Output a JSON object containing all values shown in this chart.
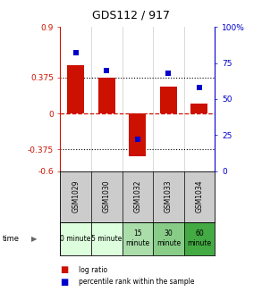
{
  "title": "GDS112 / 917",
  "samples": [
    "GSM1029",
    "GSM1030",
    "GSM1032",
    "GSM1033",
    "GSM1034"
  ],
  "log_ratio": [
    0.5,
    0.375,
    -0.45,
    0.28,
    0.1
  ],
  "percentile_rank": [
    82,
    70,
    22,
    68,
    58
  ],
  "time_labels": [
    "0 minute",
    "5 minute",
    "15\nminute",
    "30\nminute",
    "60\nminute"
  ],
  "time_colors": [
    "#ddffdd",
    "#ddffdd",
    "#aaddaa",
    "#88cc88",
    "#44aa44"
  ],
  "ylim_left": [
    -0.6,
    0.9
  ],
  "ylim_right": [
    0,
    100
  ],
  "yticks_left": [
    -0.6,
    -0.375,
    0,
    0.375,
    0.9
  ],
  "yticks_right": [
    0,
    25,
    50,
    75,
    100
  ],
  "hlines": [
    0.375,
    -0.375
  ],
  "bar_color": "#cc1100",
  "marker_color": "#0000cc",
  "sample_bg": "#cccccc",
  "legend_bar_label": "log ratio",
  "legend_marker_label": "percentile rank within the sample",
  "bar_width": 0.55
}
